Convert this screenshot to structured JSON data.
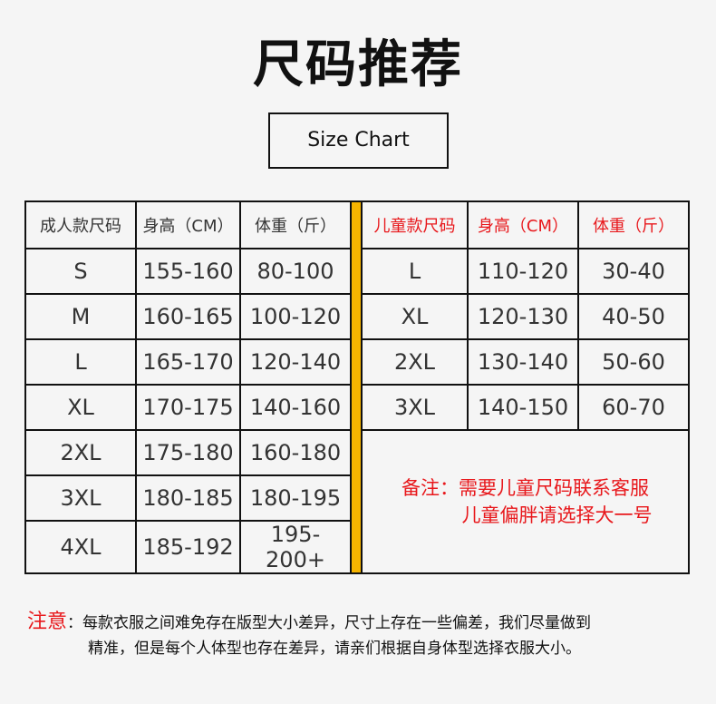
{
  "title": "尺码推荐",
  "subtitle": "Size Chart",
  "adult_headers": [
    "成人款尺码",
    "身高（CM）",
    "体重（斤）"
  ],
  "child_headers": [
    "儿童款尺码",
    "身高（CM）",
    "体重（斤）"
  ],
  "adult_rows": [
    [
      "S",
      "155-160",
      "80-100"
    ],
    [
      "M",
      "160-165",
      "100-120"
    ],
    [
      "L",
      "165-170",
      "120-140"
    ],
    [
      "XL",
      "170-175",
      "140-160"
    ],
    [
      "2XL",
      "175-180",
      "160-180"
    ],
    [
      "3XL",
      "180-185",
      "180-195"
    ],
    [
      "4XL",
      "185-192",
      "195-200+"
    ]
  ],
  "child_rows": [
    [
      "L",
      "110-120",
      "30-40"
    ],
    [
      "XL",
      "120-130",
      "40-50"
    ],
    [
      "2XL",
      "130-140",
      "50-60"
    ],
    [
      "3XL",
      "140-150",
      "60-70"
    ]
  ],
  "child_note": {
    "line1": "备注：需要儿童尺码联系客服",
    "line2": "儿童偏胖请选择大一号"
  },
  "footnote": {
    "label": "注意",
    "line1": "：每款衣服之间难免存在版型大小差异，尺寸上存在一些偏差，我们尽量做到",
    "line2": "精准，但是每个人体型也存在差异，请亲们根据自身体型选择衣服大小。"
  },
  "colors": {
    "accent_red": "#e8171b",
    "divider_orange": "#f6b400"
  }
}
